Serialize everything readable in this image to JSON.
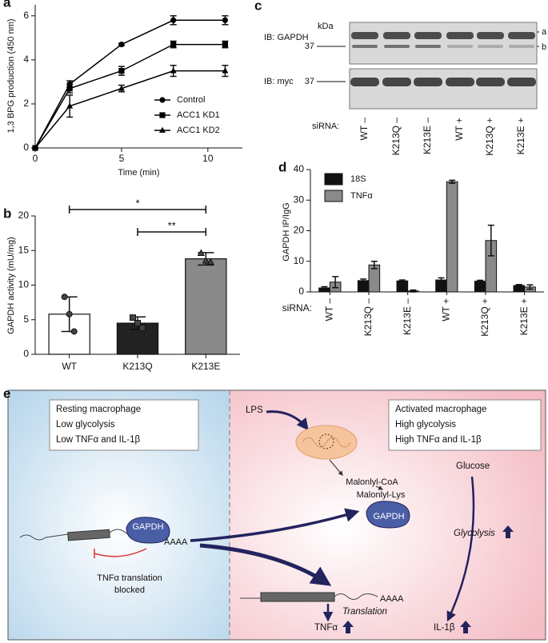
{
  "chart_data": [
    {
      "type": "line",
      "panel": "a",
      "x": [
        0,
        2,
        5,
        8,
        11
      ],
      "xlim": [
        0,
        12
      ],
      "xticks": [
        0,
        5,
        10
      ],
      "ylim": [
        0,
        6.5
      ],
      "yticks": [
        0,
        2,
        4,
        6
      ],
      "xlabel": "Time (min)",
      "ylabel": "1,3 BPG production (450 nm)",
      "legend": "lower right",
      "series": [
        {
          "name": "Control",
          "color": "#000000",
          "marker": "circle",
          "values": [
            0,
            2.9,
            4.7,
            5.8,
            5.8
          ],
          "errors": [
            0,
            0.15,
            0.05,
            0.2,
            0.2
          ]
        },
        {
          "name": "ACC1 KD1",
          "color": "#000000",
          "marker": "square",
          "values": [
            0,
            2.7,
            3.5,
            4.7,
            4.7
          ],
          "errors": [
            0,
            0.2,
            0.2,
            0.15,
            0.15
          ]
        },
        {
          "name": "ACC1 KD2",
          "color": "#000000",
          "marker": "triangle",
          "values": [
            0,
            1.9,
            2.7,
            3.5,
            3.5
          ],
          "errors": [
            0,
            0.5,
            0.15,
            0.25,
            0.25
          ]
        }
      ]
    },
    {
      "type": "bar",
      "panel": "b",
      "categories": [
        "WT",
        "K213Q",
        "K213E"
      ],
      "values": [
        5.8,
        4.5,
        13.8
      ],
      "errors": [
        2.5,
        0.9,
        0.9
      ],
      "colors": [
        "#ffffff",
        "#222222",
        "#8a8a8a"
      ],
      "points": [
        [
          8.3,
          5.8,
          3.3
        ],
        [
          5.3,
          4.5,
          3.8
        ],
        [
          14.6,
          13.5,
          13.3
        ]
      ],
      "point_markers": [
        "circle",
        "square",
        "triangle"
      ],
      "ylim": [
        0,
        20
      ],
      "yticks": [
        0,
        5,
        10,
        15,
        20
      ],
      "ylabel": "GAPDH activity (mU/mg)",
      "significance": [
        {
          "label": "*",
          "from": "WT",
          "to": "K213E"
        },
        {
          "label": "**",
          "from": "K213Q",
          "to": "K213E"
        }
      ]
    },
    {
      "type": "grouped_bar",
      "panel": "d",
      "x_title": "siRNA:",
      "categories": [
        "WT –",
        "K213Q –",
        "K213E –",
        "WT +",
        "K213Q +",
        "K213E +"
      ],
      "series": [
        {
          "name": "18S",
          "color": "#111111",
          "values": [
            1.3,
            3.7,
            3.6,
            3.9,
            3.5,
            2.1
          ],
          "errors": [
            0.4,
            0.5,
            0.3,
            0.7,
            0.3,
            0.3
          ]
        },
        {
          "name": "TNFα",
          "color": "#8a8a8a",
          "values": [
            3.2,
            8.8,
            0.3,
            36,
            16.8,
            1.6
          ],
          "errors": [
            1.8,
            1.2,
            0.3,
            0.5,
            5,
            0.7
          ]
        }
      ],
      "ylim": [
        0,
        40
      ],
      "yticks": [
        0,
        10,
        20,
        30,
        40
      ],
      "ylabel": "GAPDH IP/IgG",
      "legend": "upper left"
    }
  ],
  "blot": {
    "panel": "c",
    "unit": "kDa",
    "rows": [
      {
        "label": "IB: GAPDH",
        "marker": 37
      },
      {
        "label": "IB: myc",
        "marker": 37
      }
    ],
    "bands": [
      "a",
      "b"
    ],
    "lane_title": "siRNA:",
    "lanes": [
      "WT –",
      "K213Q –",
      "K213E –",
      "WT +",
      "K213Q +",
      "K213E +"
    ]
  },
  "diagram": {
    "panel": "e",
    "resting": [
      "Resting macrophage",
      "Low glycolysis",
      "Low TNFα and IL-1β"
    ],
    "activated": [
      "Activated macrophage",
      "High glycolysis",
      "High TNFα and IL-1β"
    ],
    "lps": "LPS",
    "malonyl_coa": "Malonlyl-CoA",
    "malonyl_lys": "Malonlyl-Lys",
    "gapdh": "GAPDH",
    "polya": "AAAA",
    "blocked": [
      "TNFα translation",
      "blocked"
    ],
    "translation": "Translation",
    "glucose": "Glucose",
    "glycolysis": "Glycolysis",
    "tnf": "TNFα",
    "il1b": "IL-1β"
  }
}
